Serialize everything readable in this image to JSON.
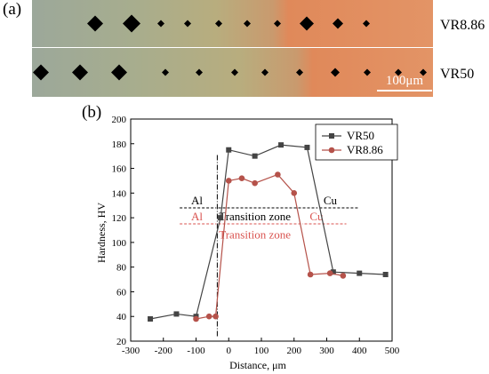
{
  "panels": {
    "a": "(a)",
    "b": "(b)"
  },
  "micrographs": {
    "top_label": "VR8.86",
    "bottom_label": "VR50",
    "scale_bar": "100μm"
  },
  "colors": {
    "vr50": "#444444",
    "vr886": "#b5524a",
    "annotation_red": "#d9534f",
    "al_zone": "#9ca89a",
    "mid_zone": "#b8ad7e",
    "cu_zone": "#e0895a"
  },
  "annotations": {
    "al_black": "Al",
    "transition_black": "Transition zone",
    "cu_black": "Cu",
    "al_red": "Al",
    "transition_red": "Transition zone",
    "cu_red": "Cu"
  },
  "chart_data": {
    "type": "line",
    "xlabel": "Distance, μm",
    "ylabel": "Hardness, HV",
    "xlim": [
      -300,
      500
    ],
    "ylim": [
      20,
      200
    ],
    "xticks": [
      -300,
      -200,
      -100,
      0,
      100,
      200,
      300,
      400,
      500
    ],
    "yticks": [
      20,
      40,
      60,
      80,
      100,
      120,
      140,
      160,
      180,
      200
    ],
    "legend_position": "top-right",
    "series": [
      {
        "name": "VR50",
        "marker": "square",
        "x": [
          -240,
          -160,
          -100,
          -25,
          0,
          80,
          160,
          240,
          320,
          400,
          480
        ],
        "y": [
          38,
          42,
          40,
          120,
          175,
          170,
          179,
          177,
          76,
          75,
          74
        ]
      },
      {
        "name": "VR8.86",
        "marker": "circle",
        "x": [
          -100,
          -60,
          -40,
          0,
          40,
          80,
          150,
          200,
          250,
          310,
          350
        ],
        "y": [
          38,
          40,
          40,
          150,
          152,
          148,
          155,
          140,
          74,
          75,
          73
        ]
      }
    ]
  }
}
